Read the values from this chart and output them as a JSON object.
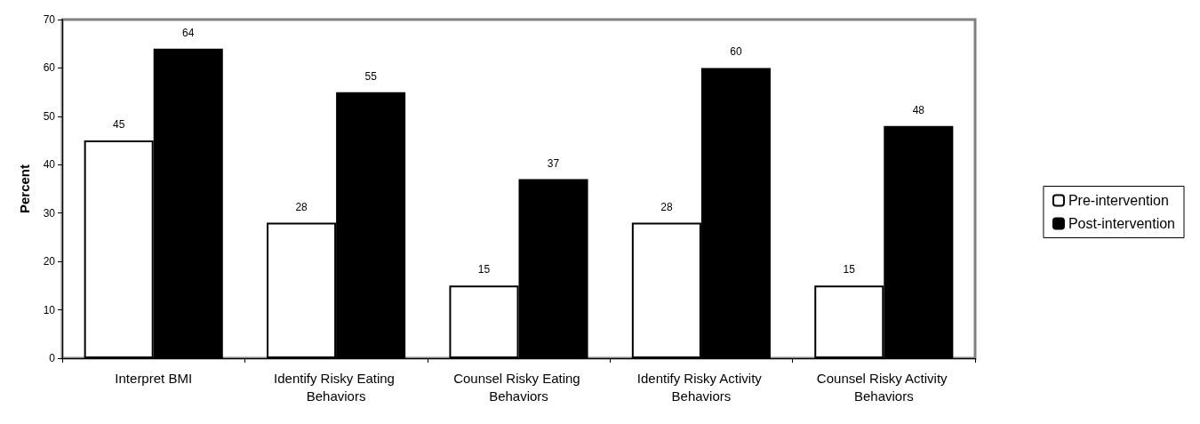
{
  "chart_data": {
    "type": "bar",
    "ylabel": "Percent",
    "categories": [
      "Interpret BMI",
      "Identify Risky Eating Behaviors",
      "Counsel Risky Eating Behaviors",
      "Identify Risky Activity Behaviors",
      "Counsel Risky Activity Behaviors"
    ],
    "series": [
      {
        "name": "Pre-intervention",
        "color": "#ffffff",
        "values": [
          45,
          28,
          15,
          28,
          15
        ]
      },
      {
        "name": "Post-intervention",
        "color": "#000000",
        "values": [
          64,
          55,
          37,
          60,
          48
        ]
      }
    ],
    "ylim": [
      0,
      70
    ],
    "yticks": [
      0,
      10,
      20,
      30,
      40,
      50,
      60,
      70
    ],
    "grid": false,
    "legend": "right",
    "data_labels": true
  }
}
